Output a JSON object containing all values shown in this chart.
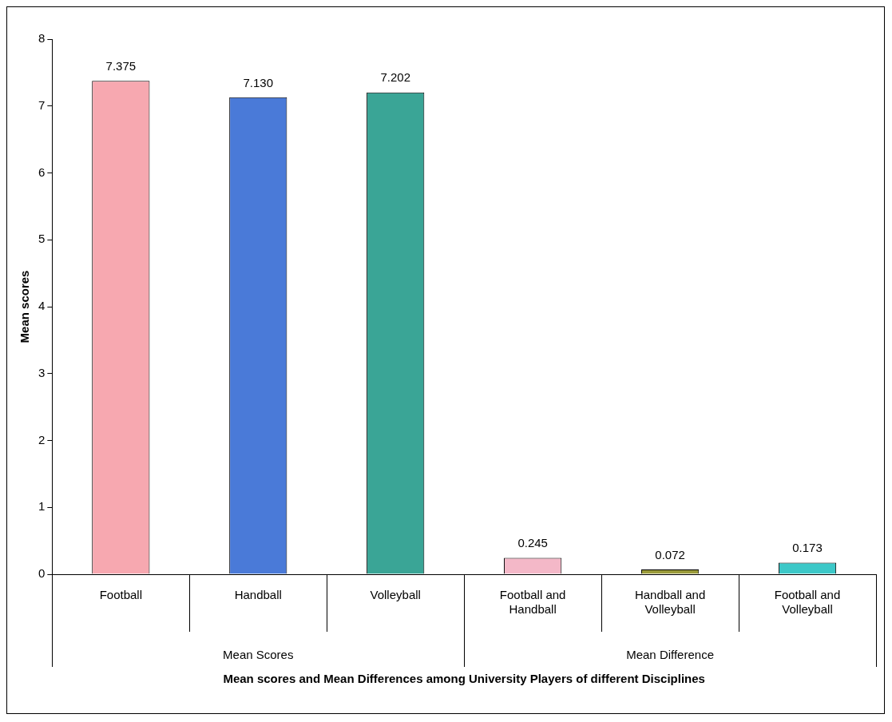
{
  "chart_data": {
    "type": "bar",
    "xlabel": "Mean scores and Mean Differences among University Players of different Disciplines",
    "ylabel": "Mean scores",
    "categories": [
      "Football",
      "Handball",
      "Volleyball",
      "Football and Handball",
      "Handball and Volleyball",
      "Football and Volleyball"
    ],
    "values": [
      7.375,
      7.13,
      7.202,
      0.245,
      0.072,
      0.173
    ],
    "value_labels": [
      "7.375",
      "7.130",
      "7.202",
      "0.245",
      "0.072",
      "0.173"
    ],
    "colors": [
      "#f7a8b0",
      "#4a7ad8",
      "#3aa596",
      "#f4b8c8",
      "#9a9a3a",
      "#3cc8c8"
    ],
    "annotations": [
      "Mean Scores",
      "Mean Difference"
    ],
    "ylim": [
      0,
      8
    ],
    "yticks": [
      0,
      1,
      2,
      3,
      4,
      5,
      6,
      7,
      8
    ],
    "grid": false,
    "legend": false
  }
}
